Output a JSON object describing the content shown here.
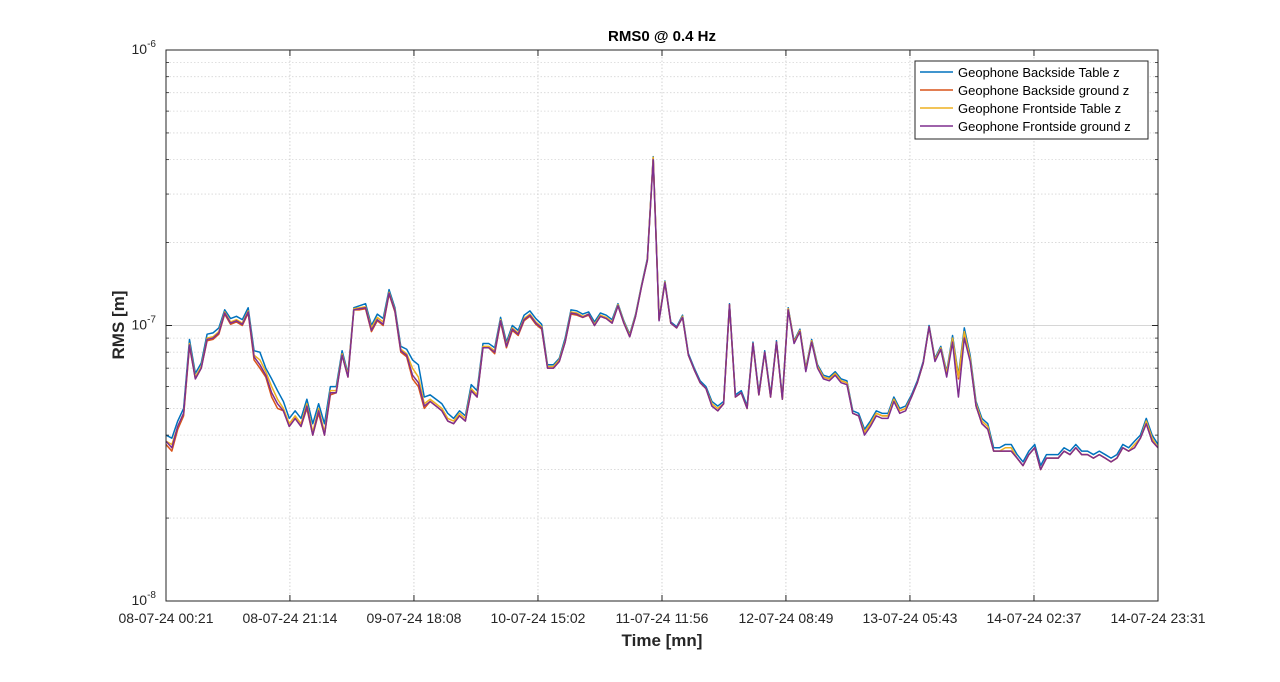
{
  "chart_data": {
    "type": "line",
    "title": "RMS0 @ 0.4 Hz",
    "xlabel": "Time [mn]",
    "ylabel": "RMS [m]",
    "y_scale": "log",
    "ylim": [
      1e-08,
      1e-06
    ],
    "y_ticks": [
      {
        "value": 1e-08,
        "base": "10",
        "exp": "-8"
      },
      {
        "value": 1e-07,
        "base": "10",
        "exp": "-7"
      },
      {
        "value": 1e-06,
        "base": "10",
        "exp": "-6"
      }
    ],
    "xlim": [
      "08-07-24 00:21",
      "14-07-24 23:31"
    ],
    "x_ticks": [
      "08-07-24 00:21",
      "08-07-24 21:14",
      "09-07-24 18:08",
      "10-07-24 15:02",
      "11-07-24 11:56",
      "12-07-24 08:49",
      "13-07-24 05:43",
      "14-07-24 02:37",
      "14-07-24 23:31"
    ],
    "grid": true,
    "legend_position": "top-right",
    "x_interval_hours": 1,
    "series": [
      {
        "name": "Geophone Backside Table z",
        "color": "#0072BD",
        "values": [
          4e-08,
          3.9e-08,
          4.5e-08,
          5e-08,
          8.9e-08,
          6.7e-08,
          7.3e-08,
          9.3e-08,
          9.4e-08,
          9.8e-08,
          1.14e-07,
          1.06e-07,
          1.08e-07,
          1.05e-07,
          1.16e-07,
          8.1e-08,
          8e-08,
          7e-08,
          6.4e-08,
          5.8e-08,
          5.3e-08,
          4.6e-08,
          4.9e-08,
          4.6e-08,
          5.4e-08,
          4.4e-08,
          5.2e-08,
          4.4e-08,
          6e-08,
          6e-08,
          8.1e-08,
          6.7e-08,
          1.16e-07,
          1.18e-07,
          1.2e-07,
          1e-07,
          1.1e-07,
          1.06e-07,
          1.35e-07,
          1.16e-07,
          8.4e-08,
          8.2e-08,
          7.5e-08,
          7.2e-08,
          5.5e-08,
          5.6e-08,
          5.4e-08,
          5.2e-08,
          4.8e-08,
          4.6e-08,
          4.9e-08,
          4.7e-08,
          6.1e-08,
          5.8e-08,
          8.6e-08,
          8.6e-08,
          8.3e-08,
          1.07e-07,
          8.7e-08,
          1e-07,
          9.6e-08,
          1.09e-07,
          1.13e-07,
          1.06e-07,
          1.01e-07,
          7.2e-08,
          7.2e-08,
          7.6e-08,
          9e-08,
          1.14e-07,
          1.13e-07,
          1.1e-07,
          1.12e-07,
          1.03e-07,
          1.11e-07,
          1.09e-07,
          1.05e-07,
          1.2e-07,
          1.04e-07,
          9.3e-08,
          1.1e-07,
          1.4e-07,
          1.75e-07,
          4.1e-07,
          1.06e-07,
          1.45e-07,
          1.03e-07,
          9.9e-08,
          1.09e-07,
          7.9e-08,
          7e-08,
          6.3e-08,
          6e-08,
          5.3e-08,
          5.1e-08,
          5.3e-08,
          1.2e-07,
          5.6e-08,
          5.8e-08,
          5.1e-08,
          8.7e-08,
          5.7e-08,
          8.1e-08,
          5.6e-08,
          8.8e-08,
          5.5e-08,
          1.16e-07,
          8.8e-08,
          9.7e-08,
          7e-08,
          8.9e-08,
          7.2e-08,
          6.6e-08,
          6.5e-08,
          6.8e-08,
          6.4e-08,
          6.3e-08,
          4.9e-08,
          4.8e-08,
          4.2e-08,
          4.5e-08,
          4.9e-08,
          4.8e-08,
          4.8e-08,
          5.5e-08,
          5e-08,
          5.1e-08,
          5.6e-08,
          6.3e-08,
          7.4e-08,
          1e-07,
          7.6e-08,
          8.4e-08,
          6.8e-08,
          9.2e-08,
          6.6e-08,
          9.8e-08,
          7.8e-08,
          5.3e-08,
          4.6e-08,
          4.4e-08,
          3.6e-08,
          3.6e-08,
          3.7e-08,
          3.7e-08,
          3.4e-08,
          3.2e-08,
          3.5e-08,
          3.7e-08,
          3.1e-08,
          3.4e-08,
          3.4e-08,
          3.4e-08,
          3.6e-08,
          3.5e-08,
          3.7e-08,
          3.5e-08,
          3.5e-08,
          3.4e-08,
          3.5e-08,
          3.4e-08,
          3.3e-08,
          3.4e-08,
          3.7e-08,
          3.6e-08,
          3.8e-08,
          4e-08,
          4.6e-08,
          4e-08,
          3.7e-08
        ]
      },
      {
        "name": "Geophone Backside ground z",
        "color": "#D95319",
        "values": [
          3.7e-08,
          3.5e-08,
          4.2e-08,
          4.7e-08,
          8.4e-08,
          6.4e-08,
          7e-08,
          8.8e-08,
          8.9e-08,
          9.3e-08,
          1.1e-07,
          1.01e-07,
          1.03e-07,
          1e-07,
          1.11e-07,
          7.5e-08,
          7e-08,
          6.5e-08,
          5.5e-08,
          5e-08,
          4.9e-08,
          4.3e-08,
          4.6e-08,
          4.3e-08,
          5e-08,
          4e-08,
          4.8e-08,
          4e-08,
          5.6e-08,
          5.7e-08,
          7.8e-08,
          6.5e-08,
          1.14e-07,
          1.14e-07,
          1.15e-07,
          9.5e-08,
          1.04e-07,
          1e-07,
          1.3e-07,
          1.12e-07,
          8e-08,
          7.7e-08,
          6.4e-08,
          6e-08,
          5e-08,
          5.3e-08,
          5.1e-08,
          4.9e-08,
          4.5e-08,
          4.4e-08,
          4.7e-08,
          4.5e-08,
          5.8e-08,
          5.5e-08,
          8.3e-08,
          8.3e-08,
          7.9e-08,
          1.03e-07,
          8.3e-08,
          9.6e-08,
          9.2e-08,
          1.04e-07,
          1.08e-07,
          1.01e-07,
          9.7e-08,
          7e-08,
          7e-08,
          7.4e-08,
          8.7e-08,
          1.1e-07,
          1.09e-07,
          1.07e-07,
          1.09e-07,
          1e-07,
          1.08e-07,
          1.06e-07,
          1.02e-07,
          1.18e-07,
          1.02e-07,
          9.1e-08,
          1.08e-07,
          1.38e-07,
          1.72e-07,
          4.05e-07,
          1.05e-07,
          1.43e-07,
          1.02e-07,
          9.8e-08,
          1.07e-07,
          7.8e-08,
          6.9e-08,
          6.2e-08,
          5.9e-08,
          5.1e-08,
          4.9e-08,
          5.2e-08,
          1.19e-07,
          5.5e-08,
          5.7e-08,
          5e-08,
          8.6e-08,
          5.6e-08,
          8e-08,
          5.5e-08,
          8.7e-08,
          5.4e-08,
          1.15e-07,
          8.7e-08,
          9.6e-08,
          6.9e-08,
          8.8e-08,
          7.1e-08,
          6.5e-08,
          6.4e-08,
          6.7e-08,
          6.3e-08,
          6.2e-08,
          4.8e-08,
          4.7e-08,
          4.1e-08,
          4.4e-08,
          4.8e-08,
          4.7e-08,
          4.7e-08,
          5.4e-08,
          4.9e-08,
          5e-08,
          5.5e-08,
          6.2e-08,
          7.3e-08,
          9.9e-08,
          7.5e-08,
          8.2e-08,
          6.6e-08,
          8.9e-08,
          6.4e-08,
          9.2e-08,
          7.5e-08,
          5.1e-08,
          4.4e-08,
          4.2e-08,
          3.5e-08,
          3.5e-08,
          3.5e-08,
          3.5e-08,
          3.3e-08,
          3.1e-08,
          3.4e-08,
          3.6e-08,
          3e-08,
          3.3e-08,
          3.3e-08,
          3.3e-08,
          3.5e-08,
          3.4e-08,
          3.6e-08,
          3.4e-08,
          3.4e-08,
          3.3e-08,
          3.4e-08,
          3.3e-08,
          3.2e-08,
          3.3e-08,
          3.6e-08,
          3.5e-08,
          3.6e-08,
          3.9e-08,
          4.4e-08,
          3.8e-08,
          3.6e-08
        ]
      },
      {
        "name": "Geophone Frontside Table z",
        "color": "#EDB120",
        "values": [
          3.8e-08,
          3.7e-08,
          4.3e-08,
          4.8e-08,
          8.6e-08,
          6.5e-08,
          7.1e-08,
          9e-08,
          9.1e-08,
          9.5e-08,
          1.12e-07,
          1.03e-07,
          1.05e-07,
          1.02e-07,
          1.13e-07,
          7.8e-08,
          7.5e-08,
          6.8e-08,
          6e-08,
          5.4e-08,
          5e-08,
          4.4e-08,
          4.7e-08,
          4.4e-08,
          5.2e-08,
          4.1e-08,
          5e-08,
          4.1e-08,
          5.8e-08,
          5.8e-08,
          7.9e-08,
          6.6e-08,
          1.15e-07,
          1.16e-07,
          1.17e-07,
          9.8e-08,
          1.07e-07,
          1.03e-07,
          1.32e-07,
          1.14e-07,
          8.2e-08,
          7.9e-08,
          7e-08,
          6.5e-08,
          5.2e-08,
          5.4e-08,
          5.2e-08,
          5e-08,
          4.6e-08,
          4.5e-08,
          4.8e-08,
          4.6e-08,
          5.9e-08,
          5.6e-08,
          8.4e-08,
          8.4e-08,
          8.1e-08,
          1.05e-07,
          8.5e-08,
          9.8e-08,
          9.4e-08,
          1.06e-07,
          1.1e-07,
          1.03e-07,
          9.9e-08,
          7.1e-08,
          7.1e-08,
          7.5e-08,
          8.8e-08,
          1.12e-07,
          1.11e-07,
          1.08e-07,
          1.1e-07,
          1.01e-07,
          1.09e-07,
          1.07e-07,
          1.03e-07,
          1.19e-07,
          1.03e-07,
          9.2e-08,
          1.09e-07,
          1.39e-07,
          1.73e-07,
          4.08e-07,
          1.05e-07,
          1.44e-07,
          1.02e-07,
          9.8e-08,
          1.08e-07,
          7.8e-08,
          6.9e-08,
          6.2e-08,
          5.9e-08,
          5.2e-08,
          5e-08,
          5.2e-08,
          1.19e-07,
          5.5e-08,
          5.7e-08,
          5e-08,
          8.6e-08,
          5.6e-08,
          8e-08,
          5.5e-08,
          8.7e-08,
          5.4e-08,
          1.15e-07,
          8.7e-08,
          9.6e-08,
          6.9e-08,
          8.8e-08,
          7.1e-08,
          6.5e-08,
          6.4e-08,
          6.7e-08,
          6.3e-08,
          6.2e-08,
          4.8e-08,
          4.7e-08,
          4.1e-08,
          4.4e-08,
          4.8e-08,
          4.7e-08,
          4.7e-08,
          5.4e-08,
          4.9e-08,
          5e-08,
          5.5e-08,
          6.2e-08,
          7.3e-08,
          9.9e-08,
          7.5e-08,
          8.3e-08,
          6.7e-08,
          9e-08,
          6.5e-08,
          9.5e-08,
          7.6e-08,
          5.2e-08,
          4.5e-08,
          4.3e-08,
          3.5e-08,
          3.5e-08,
          3.6e-08,
          3.6e-08,
          3.3e-08,
          3.1e-08,
          3.4e-08,
          3.6e-08,
          3e-08,
          3.3e-08,
          3.3e-08,
          3.3e-08,
          3.5e-08,
          3.4e-08,
          3.6e-08,
          3.4e-08,
          3.4e-08,
          3.3e-08,
          3.4e-08,
          3.3e-08,
          3.2e-08,
          3.3e-08,
          3.6e-08,
          3.5e-08,
          3.7e-08,
          3.9e-08,
          4.5e-08,
          3.9e-08,
          3.6e-08
        ]
      },
      {
        "name": "Geophone Frontside ground z",
        "color": "#7E2F8E",
        "values": [
          3.8e-08,
          3.6e-08,
          4.3e-08,
          4.8e-08,
          8.5e-08,
          6.4e-08,
          7e-08,
          8.9e-08,
          9e-08,
          9.4e-08,
          1.11e-07,
          1.02e-07,
          1.04e-07,
          1.01e-07,
          1.12e-07,
          7.7e-08,
          7.2e-08,
          6.6e-08,
          5.7e-08,
          5.2e-08,
          4.9e-08,
          4.3e-08,
          4.6e-08,
          4.3e-08,
          5.1e-08,
          4e-08,
          4.9e-08,
          4e-08,
          5.7e-08,
          5.7e-08,
          7.8e-08,
          6.5e-08,
          1.14e-07,
          1.15e-07,
          1.16e-07,
          9.6e-08,
          1.05e-07,
          1.01e-07,
          1.31e-07,
          1.13e-07,
          8.1e-08,
          7.8e-08,
          6.6e-08,
          6.2e-08,
          5.1e-08,
          5.3e-08,
          5.1e-08,
          4.9e-08,
          4.5e-08,
          4.4e-08,
          4.7e-08,
          4.5e-08,
          5.8e-08,
          5.5e-08,
          8.3e-08,
          8.3e-08,
          8e-08,
          1.04e-07,
          8.4e-08,
          9.7e-08,
          9.3e-08,
          1.05e-07,
          1.09e-07,
          1.02e-07,
          9.8e-08,
          7e-08,
          7e-08,
          7.4e-08,
          8.7e-08,
          1.11e-07,
          1.1e-07,
          1.07e-07,
          1.1e-07,
          1e-07,
          1.08e-07,
          1.06e-07,
          1.02e-07,
          1.18e-07,
          1.02e-07,
          9.1e-08,
          1.08e-07,
          1.38e-07,
          1.72e-07,
          4e-07,
          1.04e-07,
          1.43e-07,
          1.02e-07,
          9.8e-08,
          1.07e-07,
          7.8e-08,
          6.9e-08,
          6.2e-08,
          5.9e-08,
          5.1e-08,
          4.9e-08,
          5.2e-08,
          1.19e-07,
          5.5e-08,
          5.7e-08,
          5e-08,
          8.6e-08,
          5.6e-08,
          8e-08,
          5.5e-08,
          8.7e-08,
          5.4e-08,
          1.14e-07,
          8.6e-08,
          9.5e-08,
          6.8e-08,
          8.7e-08,
          7e-08,
          6.4e-08,
          6.3e-08,
          6.6e-08,
          6.2e-08,
          6.1e-08,
          4.8e-08,
          4.7e-08,
          4e-08,
          4.3e-08,
          4.7e-08,
          4.6e-08,
          4.6e-08,
          5.3e-08,
          4.8e-08,
          4.9e-08,
          5.5e-08,
          6.2e-08,
          7.3e-08,
          9.9e-08,
          7.4e-08,
          8.2e-08,
          6.5e-08,
          8.7e-08,
          5.5e-08,
          9e-08,
          7.4e-08,
          5.1e-08,
          4.4e-08,
          4.2e-08,
          3.5e-08,
          3.5e-08,
          3.5e-08,
          3.5e-08,
          3.3e-08,
          3.1e-08,
          3.4e-08,
          3.6e-08,
          3e-08,
          3.3e-08,
          3.3e-08,
          3.3e-08,
          3.5e-08,
          3.4e-08,
          3.6e-08,
          3.4e-08,
          3.4e-08,
          3.3e-08,
          3.4e-08,
          3.3e-08,
          3.2e-08,
          3.3e-08,
          3.6e-08,
          3.5e-08,
          3.6e-08,
          3.9e-08,
          4.4e-08,
          3.8e-08,
          3.6e-08
        ]
      }
    ]
  }
}
